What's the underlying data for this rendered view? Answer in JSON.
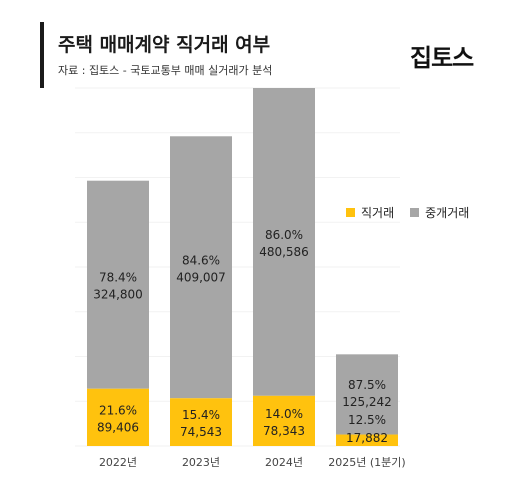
{
  "header": {
    "title": "주택 매매계약 직거래 여부",
    "subtitle": "자료 : 집토스 - 국토교통부 매매 실거래가 분석",
    "logo": "집토스"
  },
  "chart_data": {
    "type": "bar",
    "stacked": true,
    "title": "주택 매매계약 직거래 여부",
    "categories": [
      "2022년",
      "2023년",
      "2024년",
      "2025년 (1분기)"
    ],
    "series": [
      {
        "name": "직거래",
        "color": "#FFC20E",
        "values": [
          89406,
          74543,
          78343,
          17882
        ],
        "percent_labels": [
          "21.6%",
          "15.4%",
          "14.0%",
          "12.5%"
        ],
        "value_labels": [
          "89,406",
          "74,543",
          "78,343",
          "17,882"
        ]
      },
      {
        "name": "중개거래",
        "color": "#A6A6A6",
        "values": [
          324800,
          409007,
          480586,
          125242
        ],
        "percent_labels": [
          "78.4%",
          "84.6%",
          "86.0%",
          "87.5%"
        ],
        "value_labels": [
          "324,800",
          "409,007",
          "480,586",
          "125,242"
        ]
      }
    ],
    "grid": true,
    "legend_position": "right"
  }
}
